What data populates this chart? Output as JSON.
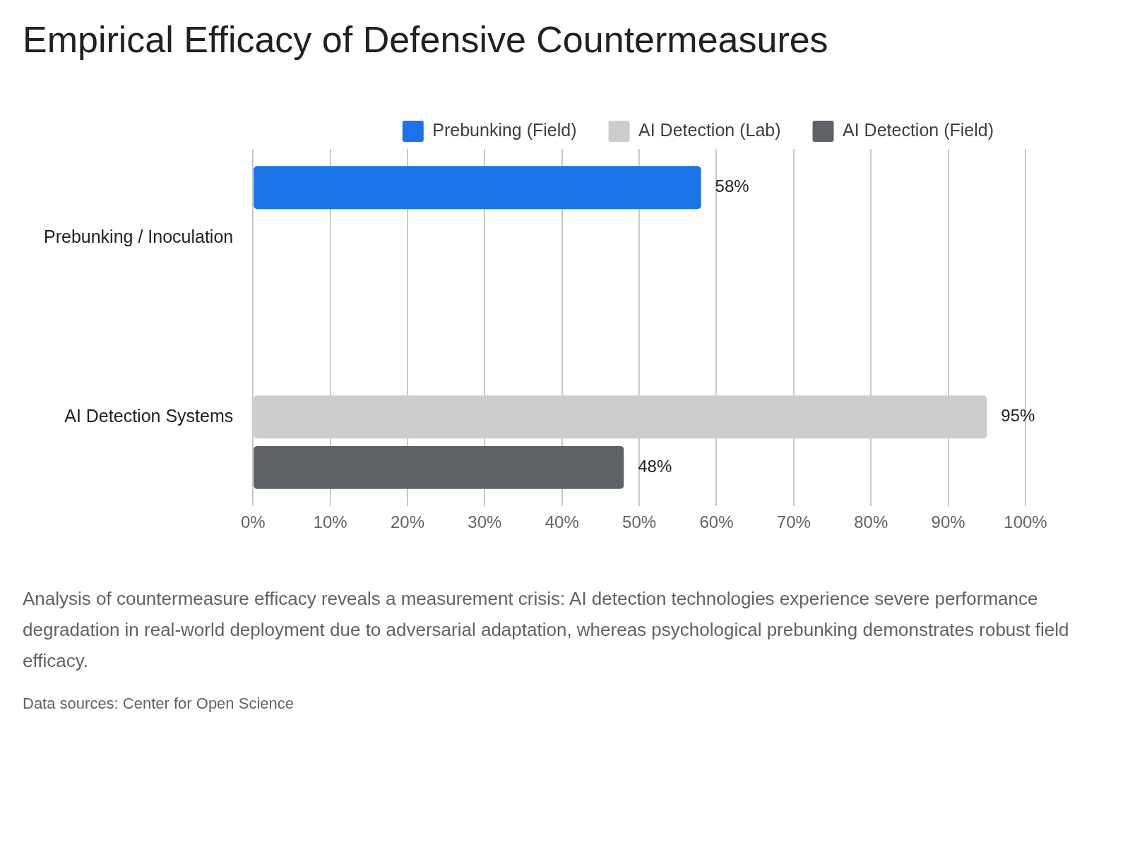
{
  "chart_data": {
    "type": "bar",
    "orientation": "horizontal",
    "title": "Empirical Efficacy of Defensive Countermeasures",
    "categories": [
      "Prebunking / Inoculation",
      "AI Detection Systems"
    ],
    "series": [
      {
        "name": "Prebunking (Field)",
        "color": "#1a73e8",
        "values": [
          58,
          null
        ],
        "value_labels": [
          "58%",
          null
        ]
      },
      {
        "name": "AI Detection (Lab)",
        "color": "#cccccc",
        "values": [
          null,
          95
        ],
        "value_labels": [
          null,
          "95%"
        ]
      },
      {
        "name": "AI Detection (Field)",
        "color": "#5f6368",
        "values": [
          null,
          48
        ],
        "value_labels": [
          null,
          "48%"
        ]
      }
    ],
    "xlim": [
      0,
      100
    ],
    "xticks": [
      {
        "value": 0,
        "label": "0%"
      },
      {
        "value": 10,
        "label": "10%"
      },
      {
        "value": 20,
        "label": "20%"
      },
      {
        "value": 30,
        "label": "30%"
      },
      {
        "value": 40,
        "label": "40%"
      },
      {
        "value": 50,
        "label": "50%"
      },
      {
        "value": 60,
        "label": "60%"
      },
      {
        "value": 70,
        "label": "70%"
      },
      {
        "value": 80,
        "label": "80%"
      },
      {
        "value": 90,
        "label": "90%"
      },
      {
        "value": 100,
        "label": "100%"
      }
    ],
    "grid": "x",
    "legend": "top right",
    "annotations": [
      "Analysis of countermeasure efficacy reveals a measurement crisis: AI detection technologies experience severe performance degradation in real-world deployment due to adversarial adaptation, whereas psychological prebunking demonstrates robust field efficacy.",
      "Data sources: Center for Open Science"
    ]
  }
}
